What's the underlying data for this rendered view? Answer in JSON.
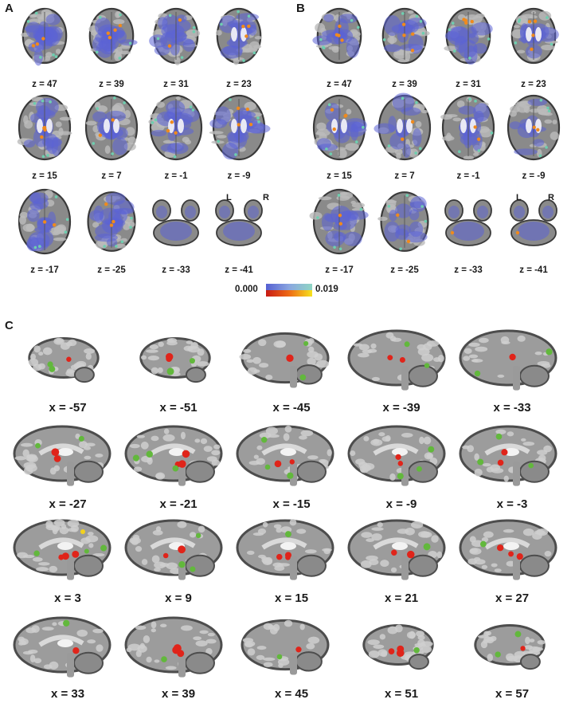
{
  "panels": {
    "a": "A",
    "b": "B",
    "c": "C"
  },
  "axial_labels": [
    "z = 47",
    "z = 39",
    "z = 31",
    "z = 23",
    "z = 15",
    "z = 7",
    "z = -1",
    "z = -9",
    "z = -17",
    "z = -25",
    "z = -33",
    "z = -41"
  ],
  "sagittal_labels": [
    "x = -57",
    "x = -51",
    "x = -45",
    "x = -39",
    "x = -33",
    "x = -27",
    "x = -21",
    "x = -15",
    "x = -9",
    "x = -3",
    "x = 3",
    "x = 9",
    "x = 15",
    "x = 21",
    "x = 27",
    "x = 33",
    "x = 39",
    "x = 45",
    "x = 51",
    "x = 57"
  ],
  "orientation": {
    "left": "L",
    "right": "R"
  },
  "colorbar": {
    "min": "0.000",
    "max": "0.019"
  },
  "colors": {
    "overlay_blue": "#5b63d6",
    "overlay_teal": "#6ecfb0",
    "hot_red": "#e0241a",
    "hot_yellow": "#f3d21e",
    "cluster_green": "#62b83c",
    "brain_gray": "#8a8a8a",
    "brain_dark": "#4d4d4d"
  }
}
